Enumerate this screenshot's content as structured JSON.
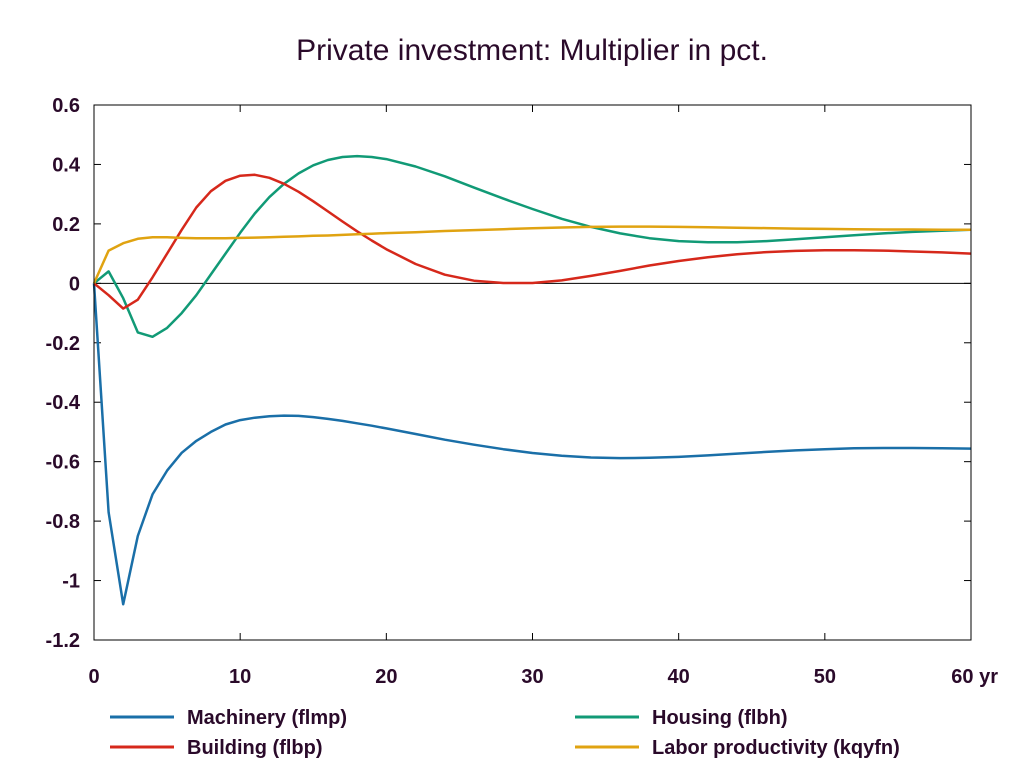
{
  "chart_data": {
    "type": "line",
    "title": "Private investment: Multiplier in pct.",
    "xlabel": "",
    "ylabel": "",
    "xlim": [
      0,
      60
    ],
    "ylim": [
      -1.2,
      0.6
    ],
    "xticks": [
      0,
      10,
      20,
      30,
      40,
      50,
      60
    ],
    "xtick_labels": [
      "0",
      "10",
      "20",
      "30",
      "40",
      "50",
      "60 yr"
    ],
    "yticks": [
      0.6,
      0.4,
      0.2,
      0,
      -0.2,
      -0.4,
      -0.6,
      -0.8,
      -1,
      -1.2
    ],
    "ytick_labels": [
      "0.6",
      "0.4",
      "0.2",
      "0",
      "-0.2",
      "-0.4",
      "-0.6",
      "-0.8",
      "-1",
      "-1.2"
    ],
    "grid": false,
    "zero_line": true,
    "legend_position": "bottom",
    "x": [
      0,
      1,
      2,
      3,
      4,
      5,
      6,
      7,
      8,
      9,
      10,
      11,
      12,
      13,
      14,
      15,
      16,
      17,
      18,
      19,
      20,
      22,
      24,
      26,
      28,
      30,
      32,
      34,
      36,
      38,
      40,
      42,
      44,
      46,
      48,
      50,
      52,
      54,
      56,
      58,
      60
    ],
    "series": [
      {
        "name": "Machinery (flmp)",
        "color": "#1a6fa8",
        "values": [
          0,
          -0.77,
          -1.08,
          -0.85,
          -0.71,
          -0.63,
          -0.57,
          -0.53,
          -0.5,
          -0.475,
          -0.46,
          -0.452,
          -0.447,
          -0.445,
          -0.446,
          -0.45,
          -0.456,
          -0.463,
          -0.471,
          -0.479,
          -0.488,
          -0.507,
          -0.526,
          -0.543,
          -0.558,
          -0.571,
          -0.58,
          -0.586,
          -0.588,
          -0.587,
          -0.584,
          -0.579,
          -0.573,
          -0.567,
          -0.562,
          -0.558,
          -0.555,
          -0.554,
          -0.554,
          -0.555,
          -0.556
        ]
      },
      {
        "name": "Housing (flbh)",
        "color": "#119a76",
        "values": [
          0,
          0.04,
          -0.05,
          -0.165,
          -0.18,
          -0.15,
          -0.1,
          -0.04,
          0.03,
          0.1,
          0.17,
          0.235,
          0.29,
          0.335,
          0.37,
          0.397,
          0.415,
          0.425,
          0.428,
          0.425,
          0.418,
          0.393,
          0.36,
          0.322,
          0.285,
          0.25,
          0.217,
          0.19,
          0.168,
          0.152,
          0.142,
          0.138,
          0.138,
          0.142,
          0.148,
          0.155,
          0.162,
          0.168,
          0.173,
          0.177,
          0.18
        ]
      },
      {
        "name": "Building (flbp)",
        "color": "#d6281b",
        "values": [
          0,
          -0.04,
          -0.085,
          -0.055,
          0.02,
          0.1,
          0.18,
          0.255,
          0.31,
          0.345,
          0.362,
          0.365,
          0.355,
          0.335,
          0.308,
          0.276,
          0.242,
          0.208,
          0.175,
          0.144,
          0.115,
          0.065,
          0.029,
          0.009,
          0.001,
          0.001,
          0.01,
          0.025,
          0.042,
          0.06,
          0.075,
          0.088,
          0.098,
          0.105,
          0.109,
          0.111,
          0.111,
          0.11,
          0.107,
          0.104,
          0.1
        ]
      },
      {
        "name": "Labor productivity (kqyfn)",
        "color": "#e0a311",
        "values": [
          0,
          0.11,
          0.135,
          0.15,
          0.155,
          0.155,
          0.153,
          0.152,
          0.152,
          0.152,
          0.153,
          0.154,
          0.155,
          0.157,
          0.158,
          0.16,
          0.161,
          0.163,
          0.165,
          0.167,
          0.169,
          0.172,
          0.176,
          0.179,
          0.182,
          0.185,
          0.188,
          0.19,
          0.191,
          0.191,
          0.19,
          0.189,
          0.187,
          0.186,
          0.184,
          0.183,
          0.182,
          0.181,
          0.181,
          0.18,
          0.18
        ]
      }
    ],
    "legend_order": [
      "Machinery (flmp)",
      "Housing (flbh)",
      "Building (flbp)",
      "Labor productivity (kqyfn)"
    ]
  }
}
